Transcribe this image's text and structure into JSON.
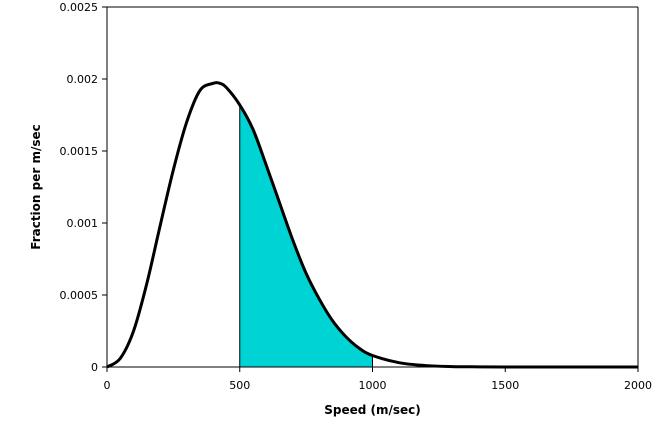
{
  "chart_data": {
    "type": "area",
    "title": "",
    "xlabel": "Speed (m/sec)",
    "ylabel": "Fraction per m/sec",
    "xlim": [
      0,
      2000
    ],
    "ylim": [
      0,
      0.0025
    ],
    "x_ticks": [
      "0",
      "500",
      "1000",
      "1500",
      "2000"
    ],
    "y_ticks": [
      "0",
      "0.0005",
      "0.001",
      "0.0015",
      "0.002",
      "0.0025"
    ],
    "grid": false,
    "legend": "none",
    "series": [
      {
        "x": [
          0,
          50,
          100,
          150,
          200,
          250,
          300,
          350,
          400,
          425,
          450,
          500,
          550,
          600,
          650,
          700,
          750,
          800,
          850,
          900,
          950,
          1000,
          1100,
          1200,
          1300,
          1400,
          1500,
          1600,
          1800,
          2000
        ],
        "y": [
          0,
          6e-05,
          0.00025,
          0.00058,
          0.00098,
          0.00137,
          0.0017,
          0.00192,
          0.00197,
          0.00197,
          0.00194,
          0.00182,
          0.00165,
          0.0014,
          0.00114,
          0.00088,
          0.00065,
          0.00047,
          0.00032,
          0.00021,
          0.00013,
          8e-05,
          3e-05,
          1e-05,
          3e-06,
          1e-06,
          0,
          0,
          0,
          0
        ]
      }
    ],
    "shaded_region": {
      "x_from": 500,
      "x_to": 1000
    },
    "colors": {
      "curve": "#000000",
      "shade": "#00d3d3",
      "axis": "#000000"
    }
  }
}
